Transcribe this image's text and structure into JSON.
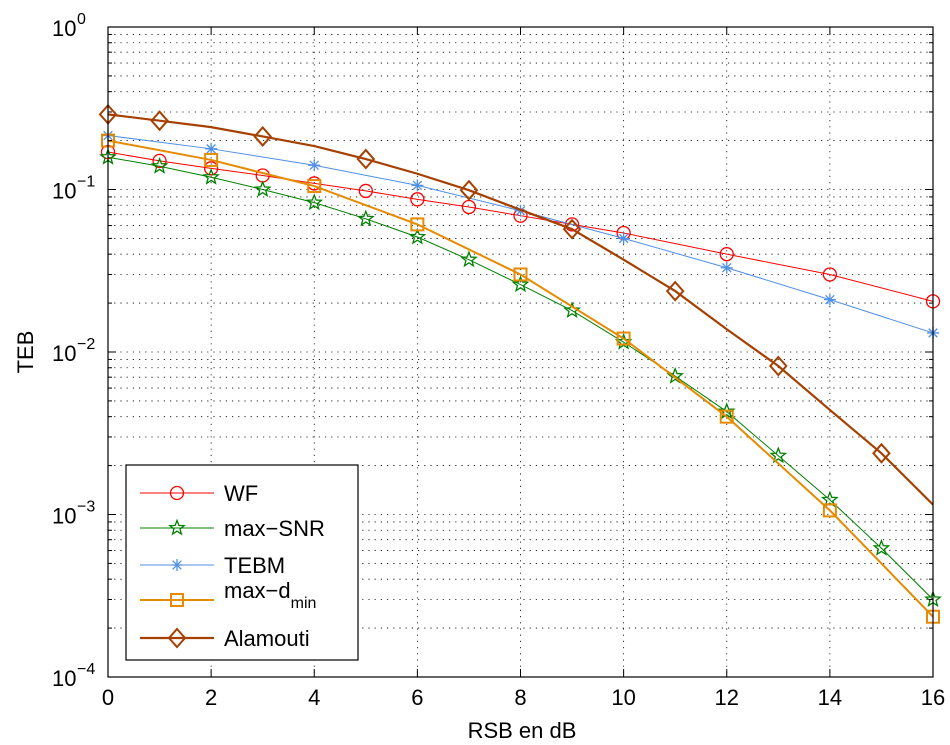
{
  "chart_data": {
    "type": "line",
    "xlabel": "RSB en dB",
    "ylabel": "TEB",
    "xlim": [
      0,
      16
    ],
    "ylim": [
      0.0001,
      1
    ],
    "yscale": "log",
    "grid": true,
    "legend_position": "bottom-left",
    "x_ticks": [
      0,
      2,
      4,
      6,
      8,
      10,
      12,
      14,
      16
    ],
    "x_tick_labels": [
      "0",
      "2",
      "4",
      "6",
      "8",
      "10",
      "12",
      "14",
      "16"
    ],
    "y_tick_labels": [
      {
        "base": "10",
        "exp": "−4",
        "value": 0.0001
      },
      {
        "base": "10",
        "exp": "−3",
        "value": 0.001
      },
      {
        "base": "10",
        "exp": "−2",
        "value": 0.01
      },
      {
        "base": "10",
        "exp": "−1",
        "value": 0.1
      },
      {
        "base": "10",
        "exp": "0",
        "value": 1
      }
    ],
    "series": [
      {
        "name": "WF",
        "color": "#ff0000",
        "marker": "circle",
        "x": [
          0,
          1,
          2,
          3,
          4,
          5,
          6,
          7,
          8,
          9,
          10,
          12,
          14,
          16
        ],
        "y": [
          0.17,
          0.15,
          0.135,
          0.122,
          0.109,
          0.098,
          0.087,
          0.078,
          0.069,
          0.061,
          0.054,
          0.04,
          0.03,
          0.0205
        ]
      },
      {
        "name": "max−SNR",
        "color": "#008000",
        "marker": "star",
        "x": [
          0,
          1,
          2,
          3,
          4,
          5,
          6,
          7,
          8,
          9,
          10,
          11,
          12,
          13,
          14,
          15,
          16
        ],
        "y": [
          0.158,
          0.139,
          0.119,
          0.1,
          0.083,
          0.066,
          0.051,
          0.037,
          0.026,
          0.018,
          0.0115,
          0.0071,
          0.0043,
          0.0023,
          0.00123,
          0.00062,
          0.0003
        ]
      },
      {
        "name": "TEBM",
        "color": "#4f8fe6",
        "marker": "asterisk",
        "x": [
          0,
          2,
          4,
          6,
          8,
          10,
          12,
          14,
          16
        ],
        "y": [
          0.215,
          0.178,
          0.141,
          0.106,
          0.074,
          0.05,
          0.033,
          0.021,
          0.0131
        ]
      },
      {
        "name": "max−d",
        "name_sub": "min",
        "color": "#e68a00",
        "marker": "square",
        "x": [
          0,
          2,
          4,
          6,
          8,
          10,
          12,
          14,
          16
        ],
        "y": [
          0.2,
          0.152,
          0.105,
          0.061,
          0.03,
          0.0121,
          0.004,
          0.00106,
          0.000235
        ]
      },
      {
        "name": "Alamouti",
        "color": "#a64000",
        "marker": "diamond",
        "x": [
          0,
          1,
          3,
          5,
          7,
          9,
          11,
          13,
          15
        ],
        "y": [
          0.29,
          0.265,
          0.212,
          0.154,
          0.099,
          0.057,
          0.0237,
          0.0082,
          0.00238
        ],
        "line_x": [
          0,
          1,
          2,
          3,
          4,
          5,
          6,
          7,
          8,
          9,
          10,
          11,
          12,
          13,
          14,
          15,
          16
        ],
        "line_y": [
          0.29,
          0.265,
          0.242,
          0.212,
          0.185,
          0.154,
          0.125,
          0.099,
          0.075,
          0.057,
          0.037,
          0.0237,
          0.0138,
          0.0082,
          0.0044,
          0.00238,
          0.00115
        ]
      }
    ]
  }
}
